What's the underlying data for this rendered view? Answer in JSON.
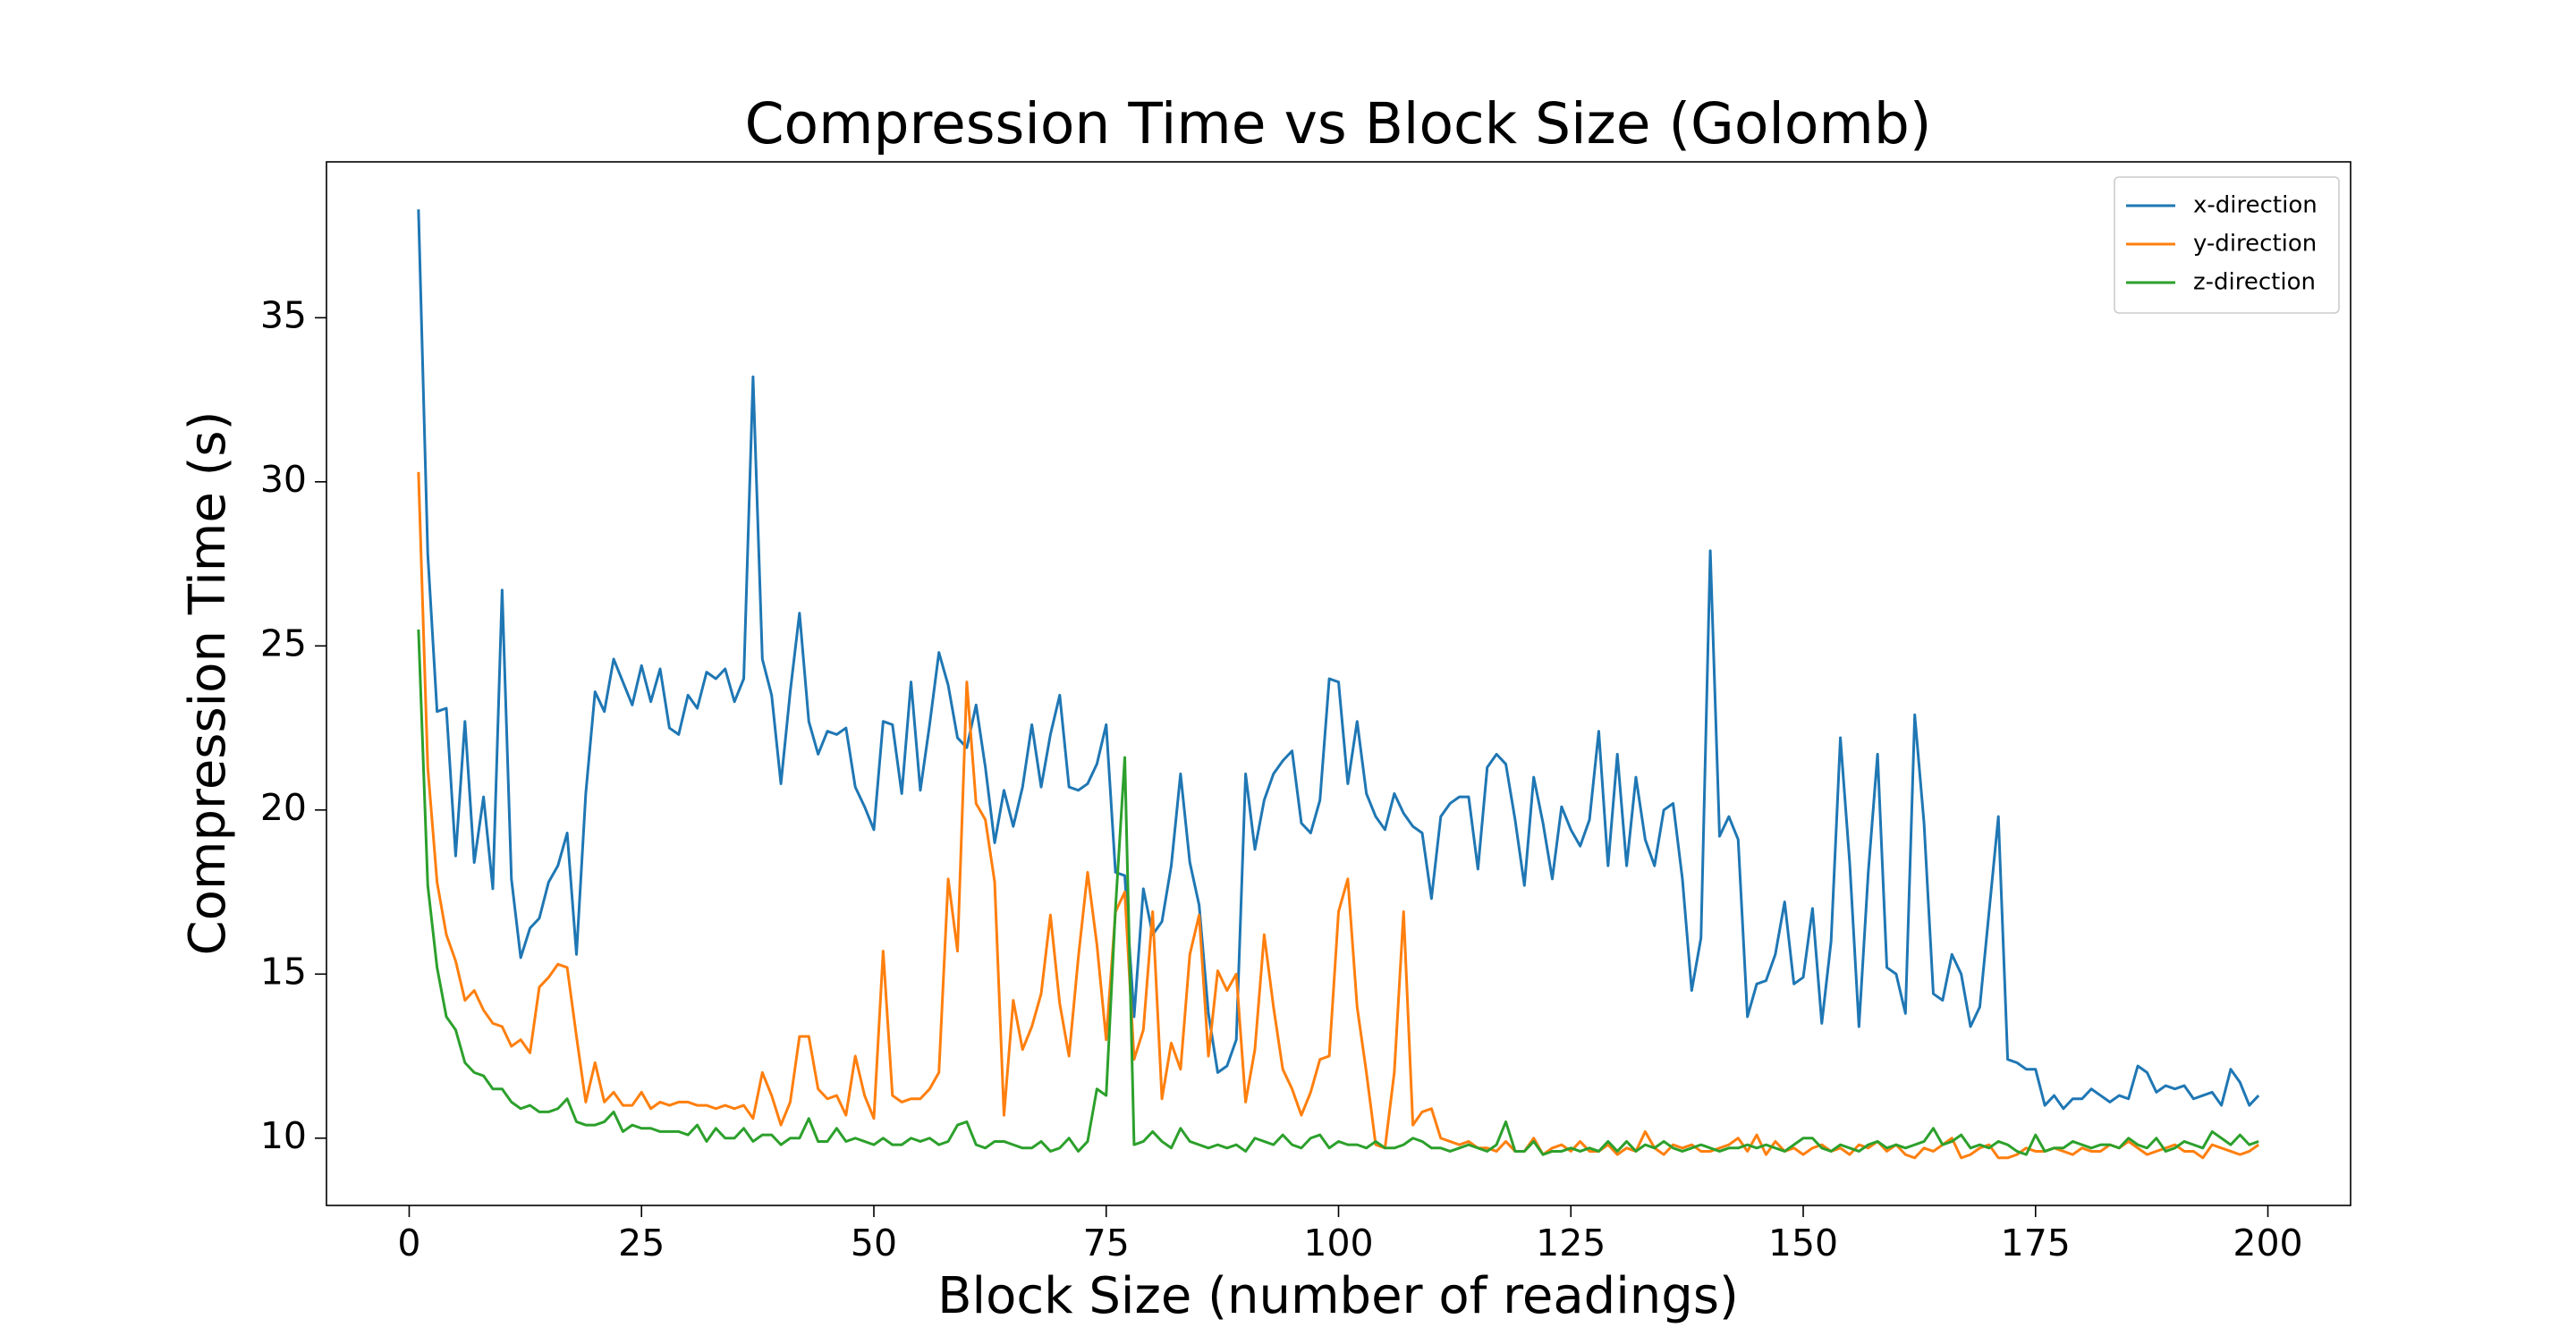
{
  "chart_data": {
    "type": "line",
    "title": "Compression Time vs Block Size (Golomb)",
    "x_label": "Block Size (number of readings)",
    "y_label": "Compression Time (s)",
    "xlim": [
      -8.9,
      208.9
    ],
    "ylim": [
      7.95,
      39.75
    ],
    "xticks": [
      0,
      25,
      50,
      75,
      100,
      125,
      150,
      175,
      200
    ],
    "yticks": [
      10,
      15,
      20,
      25,
      30,
      35
    ],
    "legend": "upper right",
    "x": [
      1,
      2,
      3,
      4,
      5,
      6,
      7,
      8,
      9,
      10,
      11,
      12,
      13,
      14,
      15,
      16,
      17,
      18,
      19,
      20,
      21,
      22,
      23,
      24,
      25,
      26,
      27,
      28,
      29,
      30,
      31,
      32,
      33,
      34,
      35,
      36,
      37,
      38,
      39,
      40,
      41,
      42,
      43,
      44,
      45,
      46,
      47,
      48,
      49,
      50,
      51,
      52,
      53,
      54,
      55,
      56,
      57,
      58,
      59,
      60,
      61,
      62,
      63,
      64,
      65,
      66,
      67,
      68,
      69,
      70,
      71,
      72,
      73,
      74,
      75,
      76,
      77,
      78,
      79,
      80,
      81,
      82,
      83,
      84,
      85,
      86,
      87,
      88,
      89,
      90,
      91,
      92,
      93,
      94,
      95,
      96,
      97,
      98,
      99,
      100,
      101,
      102,
      103,
      104,
      105,
      106,
      107,
      108,
      109,
      110,
      111,
      112,
      113,
      114,
      115,
      116,
      117,
      118,
      119,
      120,
      121,
      122,
      123,
      124,
      125,
      126,
      127,
      128,
      129,
      130,
      131,
      132,
      133,
      134,
      135,
      136,
      137,
      138,
      139,
      140,
      141,
      142,
      143,
      144,
      145,
      146,
      147,
      148,
      149,
      150,
      151,
      152,
      153,
      154,
      155,
      156,
      157,
      158,
      159,
      160,
      161,
      162,
      163,
      164,
      165,
      166,
      167,
      168,
      169,
      170,
      171,
      172,
      173,
      174,
      175,
      176,
      177,
      178,
      179,
      180,
      181,
      182,
      183,
      184,
      185,
      186,
      187,
      188,
      189,
      190,
      191,
      192,
      193,
      194,
      195,
      196,
      197,
      198,
      199
    ],
    "series": [
      {
        "name": "x-direction",
        "color": "#1f77b4",
        "values": [
          38.3,
          27.8,
          23.0,
          23.1,
          18.6,
          22.7,
          18.4,
          20.4,
          17.6,
          26.7,
          17.9,
          15.5,
          16.4,
          16.7,
          17.8,
          18.3,
          19.3,
          15.6,
          20.5,
          23.6,
          23.0,
          24.6,
          23.9,
          23.2,
          24.4,
          23.3,
          24.3,
          22.5,
          22.3,
          23.5,
          23.1,
          24.2,
          24.0,
          24.3,
          23.3,
          24.0,
          33.2,
          24.6,
          23.5,
          20.8,
          23.6,
          26.0,
          22.7,
          21.7,
          22.4,
          22.3,
          22.5,
          20.7,
          20.1,
          19.4,
          22.7,
          22.6,
          20.5,
          23.9,
          20.6,
          22.6,
          24.8,
          23.8,
          22.2,
          21.9,
          23.2,
          21.3,
          19.0,
          20.6,
          19.5,
          20.7,
          22.6,
          20.7,
          22.3,
          23.5,
          20.7,
          20.6,
          20.8,
          21.4,
          22.6,
          18.1,
          18.0,
          13.7,
          17.6,
          16.2,
          16.6,
          18.3,
          21.1,
          18.4,
          17.1,
          13.8,
          12.0,
          12.2,
          13.0,
          21.1,
          18.8,
          20.3,
          21.1,
          21.5,
          21.8,
          19.6,
          19.3,
          20.3,
          24.0,
          23.9,
          20.8,
          22.7,
          20.5,
          19.8,
          19.4,
          20.5,
          19.9,
          19.5,
          19.3,
          17.3,
          19.8,
          20.2,
          20.4,
          20.4,
          18.2,
          21.3,
          21.7,
          21.4,
          19.7,
          17.7,
          21.0,
          19.6,
          17.9,
          20.1,
          19.4,
          18.9,
          19.7,
          22.4,
          18.3,
          21.7,
          18.3,
          21.0,
          19.1,
          18.3,
          20.0,
          20.2,
          17.9,
          14.5,
          16.1,
          27.9,
          19.2,
          19.8,
          19.1,
          13.7,
          14.7,
          14.8,
          15.6,
          17.2,
          14.7,
          14.9,
          17.0,
          13.5,
          16.0,
          22.2,
          18.4,
          13.4,
          18.1,
          21.7,
          15.2,
          15.0,
          13.8,
          22.9,
          19.6,
          14.4,
          14.2,
          15.6,
          15.0,
          13.4,
          14.0,
          16.9,
          19.8,
          12.4,
          12.3,
          12.1,
          12.1,
          11.0,
          11.3,
          10.9,
          11.2,
          11.2,
          11.5,
          11.3,
          11.1,
          11.3,
          11.2,
          12.2,
          12.0,
          11.4,
          11.6,
          11.5,
          11.6,
          11.2,
          11.3,
          11.4,
          11.0,
          12.1,
          11.7,
          11.0,
          11.3
        ]
      },
      {
        "name": "y-direction",
        "color": "#ff7f0e",
        "values": [
          30.3,
          21.3,
          17.8,
          16.2,
          15.4,
          14.2,
          14.5,
          13.9,
          13.5,
          13.4,
          12.8,
          13.0,
          12.6,
          14.6,
          14.9,
          15.3,
          15.2,
          13.1,
          11.1,
          12.3,
          11.1,
          11.4,
          11.0,
          11.0,
          11.4,
          10.9,
          11.1,
          11.0,
          11.1,
          11.1,
          11.0,
          11.0,
          10.9,
          11.0,
          10.9,
          11.0,
          10.6,
          12.0,
          11.3,
          10.4,
          11.1,
          13.1,
          13.1,
          11.5,
          11.2,
          11.3,
          10.7,
          12.5,
          11.3,
          10.6,
          15.7,
          11.3,
          11.1,
          11.2,
          11.2,
          11.5,
          12.0,
          17.9,
          15.7,
          23.9,
          20.2,
          19.7,
          17.8,
          10.7,
          14.2,
          12.7,
          13.4,
          14.4,
          16.8,
          14.1,
          12.5,
          15.5,
          18.1,
          15.9,
          13.0,
          16.9,
          17.5,
          12.4,
          13.3,
          16.9,
          11.2,
          12.9,
          12.1,
          15.6,
          16.8,
          12.5,
          15.1,
          14.5,
          15.0,
          11.1,
          12.7,
          16.2,
          14.0,
          12.1,
          11.5,
          10.7,
          11.4,
          12.4,
          12.5,
          16.9,
          17.9,
          14.0,
          12.0,
          9.8,
          9.7,
          12.0,
          16.9,
          10.4,
          10.8,
          10.9,
          10.0,
          9.9,
          9.8,
          9.9,
          9.7,
          9.7,
          9.6,
          9.9,
          9.6,
          9.6,
          10.0,
          9.5,
          9.7,
          9.8,
          9.6,
          9.9,
          9.6,
          9.6,
          9.8,
          9.5,
          9.7,
          9.6,
          10.2,
          9.7,
          9.5,
          9.8,
          9.7,
          9.8,
          9.6,
          9.6,
          9.7,
          9.8,
          10.0,
          9.6,
          10.1,
          9.5,
          9.9,
          9.6,
          9.7,
          9.5,
          9.7,
          9.8,
          9.6,
          9.7,
          9.5,
          9.8,
          9.7,
          9.9,
          9.6,
          9.8,
          9.5,
          9.4,
          9.7,
          9.6,
          9.8,
          10.0,
          9.4,
          9.5,
          9.7,
          9.8,
          9.4,
          9.4,
          9.5,
          9.7,
          9.6,
          9.6,
          9.7,
          9.6,
          9.5,
          9.7,
          9.6,
          9.6,
          9.8,
          9.7,
          9.9,
          9.7,
          9.5,
          9.6,
          9.7,
          9.8,
          9.6,
          9.6,
          9.4,
          9.8,
          9.7,
          9.6,
          9.5,
          9.6,
          9.8
        ]
      },
      {
        "name": "z-direction",
        "color": "#2ca02c",
        "values": [
          25.5,
          17.7,
          15.2,
          13.7,
          13.3,
          12.3,
          12.0,
          11.9,
          11.5,
          11.5,
          11.1,
          10.9,
          11.0,
          10.8,
          10.8,
          10.9,
          11.2,
          10.5,
          10.4,
          10.4,
          10.5,
          10.8,
          10.2,
          10.4,
          10.3,
          10.3,
          10.2,
          10.2,
          10.2,
          10.1,
          10.4,
          9.9,
          10.3,
          10.0,
          10.0,
          10.3,
          9.9,
          10.1,
          10.1,
          9.8,
          10.0,
          10.0,
          10.6,
          9.9,
          9.9,
          10.3,
          9.9,
          10.0,
          9.9,
          9.8,
          10.0,
          9.8,
          9.8,
          10.0,
          9.9,
          10.0,
          9.8,
          9.9,
          10.4,
          10.5,
          9.8,
          9.7,
          9.9,
          9.9,
          9.8,
          9.7,
          9.7,
          9.9,
          9.6,
          9.7,
          10.0,
          9.6,
          9.9,
          11.5,
          11.3,
          17.0,
          21.6,
          9.8,
          9.9,
          10.2,
          9.9,
          9.7,
          10.3,
          9.9,
          9.8,
          9.7,
          9.8,
          9.7,
          9.8,
          9.6,
          10.0,
          9.9,
          9.8,
          10.1,
          9.8,
          9.7,
          10.0,
          10.1,
          9.7,
          9.9,
          9.8,
          9.8,
          9.7,
          9.9,
          9.7,
          9.7,
          9.8,
          10.0,
          9.9,
          9.7,
          9.7,
          9.6,
          9.7,
          9.8,
          9.7,
          9.6,
          9.8,
          10.5,
          9.6,
          9.6,
          9.9,
          9.5,
          9.6,
          9.6,
          9.7,
          9.6,
          9.7,
          9.6,
          9.9,
          9.6,
          9.9,
          9.6,
          9.8,
          9.7,
          9.9,
          9.7,
          9.6,
          9.7,
          9.8,
          9.7,
          9.6,
          9.7,
          9.7,
          9.8,
          9.7,
          9.8,
          9.7,
          9.6,
          9.8,
          10.0,
          10.0,
          9.7,
          9.6,
          9.8,
          9.7,
          9.6,
          9.8,
          9.9,
          9.7,
          9.8,
          9.7,
          9.8,
          9.9,
          10.3,
          9.8,
          9.9,
          10.1,
          9.7,
          9.8,
          9.7,
          9.9,
          9.8,
          9.6,
          9.5,
          10.1,
          9.6,
          9.7,
          9.7,
          9.9,
          9.8,
          9.7,
          9.8,
          9.8,
          9.7,
          10.0,
          9.8,
          9.7,
          10.0,
          9.6,
          9.7,
          9.9,
          9.8,
          9.7,
          10.2,
          10.0,
          9.8,
          10.1,
          9.8,
          9.9
        ]
      }
    ]
  }
}
